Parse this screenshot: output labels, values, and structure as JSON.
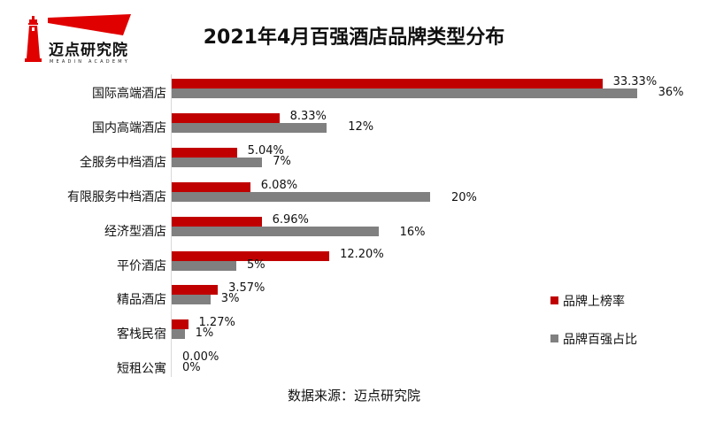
{
  "logo": {
    "name": "迈点研究院",
    "subtitle": "MEADIN ACADEMY",
    "color": "#e00000"
  },
  "title": "2021年4月百强酒店品牌类型分布",
  "legend": {
    "series_a": {
      "label": "品牌上榜率",
      "color": "#c00000"
    },
    "series_b": {
      "label": "品牌百强占比",
      "color": "#808080"
    }
  },
  "source": "数据来源：迈点研究院",
  "chart_data": {
    "type": "bar",
    "orientation": "horizontal",
    "title": "2021年4月百强酒店品牌类型分布",
    "xlabel": "",
    "ylabel": "",
    "categories": [
      "国际高端酒店",
      "国内高端酒店",
      "全服务中档酒店",
      "有限服务中档酒店",
      "经济型酒店",
      "平价酒店",
      "精品酒店",
      "客栈民宿",
      "短租公寓"
    ],
    "series": [
      {
        "name": "品牌上榜率",
        "color": "#c00000",
        "values": [
          33.33,
          8.33,
          5.04,
          6.08,
          6.96,
          12.2,
          3.57,
          1.27,
          0.0
        ],
        "labels": [
          "33.33%",
          "8.33%",
          "5.04%",
          "6.08%",
          "6.96%",
          "12.20%",
          "3.57%",
          "1.27%",
          "0.00%"
        ]
      },
      {
        "name": "品牌百强占比",
        "color": "#808080",
        "values": [
          36,
          12,
          7,
          20,
          16,
          5,
          3,
          1,
          0
        ],
        "labels": [
          "36%",
          "12%",
          "7%",
          "20%",
          "16%",
          "5%",
          "3%",
          "1%",
          "0%"
        ]
      }
    ],
    "xlim": [
      0,
      36
    ],
    "grid": false,
    "legend_position": "right",
    "source": "数据来源：迈点研究院"
  }
}
